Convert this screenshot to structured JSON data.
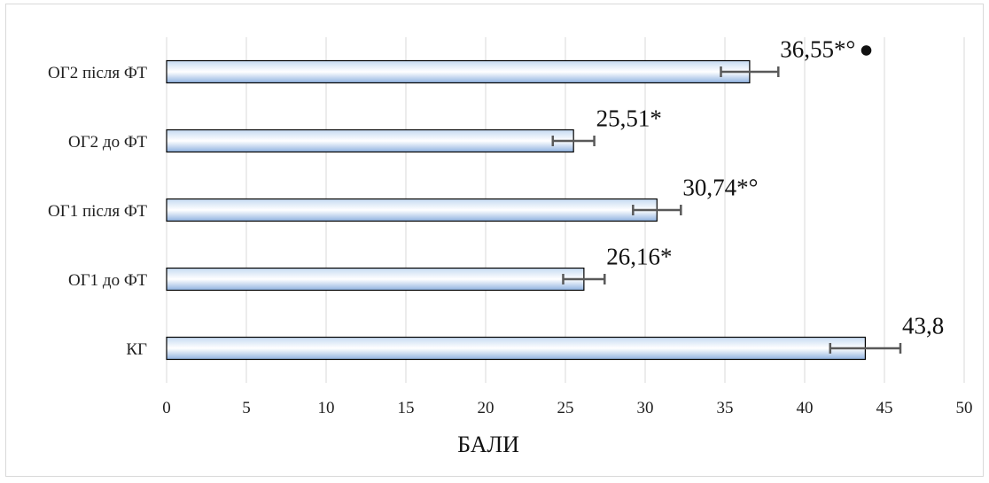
{
  "chart_data": {
    "type": "bar",
    "orientation": "horizontal",
    "categories": [
      "КГ",
      "ОГ1 до ФТ",
      "ОГ1 після ФТ",
      "ОГ2 до ФТ",
      "ОГ2 після ФТ"
    ],
    "values": [
      43.8,
      26.16,
      30.74,
      25.51,
      36.55
    ],
    "errors": [
      2.2,
      1.3,
      1.5,
      1.3,
      1.8
    ],
    "data_labels": [
      "43,8",
      "26,16*",
      "30,74*°",
      "25,51*",
      "36,55*°"
    ],
    "label_markers": [
      "",
      "",
      "",
      "",
      "●"
    ],
    "xlabel": "БАЛИ",
    "ylabel": "",
    "title": "",
    "xlim": [
      0,
      50
    ],
    "xticks": [
      0,
      5,
      10,
      15,
      20,
      25,
      30,
      35,
      40,
      45,
      50
    ],
    "grid": "vertical",
    "legend": "none",
    "colors": {
      "bar_gradient_top": "#c5daf2",
      "bar_gradient_mid": "#ffffff",
      "bar_gradient_bottom": "#8fb2e0",
      "bar_stroke": "#000000",
      "error_bar": "#595959",
      "grid": "#d9d9d9"
    }
  }
}
